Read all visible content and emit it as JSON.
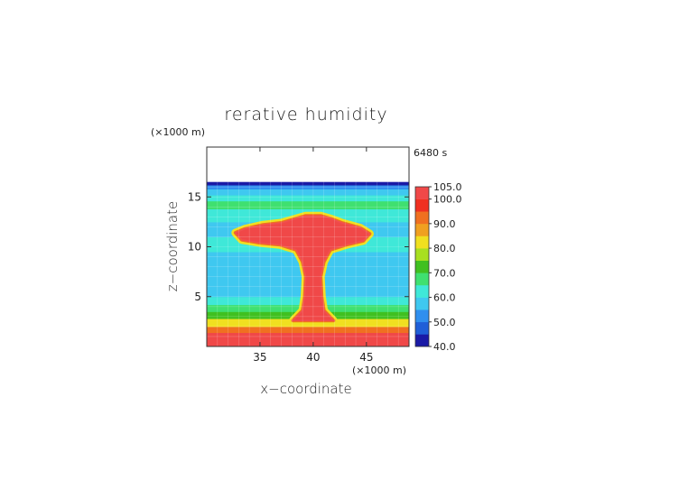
{
  "chart_data": {
    "type": "heatmap",
    "title": "rerative humidity",
    "time_label": "6480 s",
    "xlabel": "x−coordinate",
    "ylabel": "z−coordinate",
    "x_unit": "(×1000 m)",
    "y_unit": "(×1000 m)",
    "xlim": [
      30,
      49
    ],
    "ylim": [
      0,
      20
    ],
    "x_ticks": [
      35,
      40,
      45
    ],
    "y_ticks": [
      5,
      10,
      15
    ],
    "x_tick_labels": [
      "35",
      "40",
      "45"
    ],
    "y_tick_labels": [
      "5",
      "10",
      "15"
    ],
    "colorbar": {
      "levels": [
        40,
        45,
        50,
        55,
        60,
        65,
        70,
        75,
        80,
        85,
        90,
        95,
        100,
        105
      ],
      "colors": [
        "#1a1aa6",
        "#1f5fd8",
        "#2f8fef",
        "#3fc8f0",
        "#3fe8d8",
        "#3fe070",
        "#40c020",
        "#a8e020",
        "#f0e020",
        "#f0a020",
        "#f07020",
        "#f03020",
        "#f04848",
        "#f4a0a0"
      ],
      "tick_labels": [
        "40.0",
        "50.0",
        "60.0",
        "70.0",
        "80.0",
        "90.0",
        "100.0",
        "105.0"
      ]
    },
    "cloud_outline": [
      [
        32.7,
        11.4
      ],
      [
        33.6,
        11.8
      ],
      [
        35.3,
        12.2
      ],
      [
        37.0,
        12.4
      ],
      [
        38.3,
        12.8
      ],
      [
        39.3,
        13.1
      ],
      [
        40.7,
        13.1
      ],
      [
        41.7,
        12.8
      ],
      [
        42.7,
        12.4
      ],
      [
        44.4,
        11.9
      ],
      [
        45.3,
        11.3
      ],
      [
        44.7,
        10.6
      ],
      [
        43.1,
        10.2
      ],
      [
        41.6,
        9.7
      ],
      [
        41.0,
        8.5
      ],
      [
        40.7,
        7.0
      ],
      [
        40.8,
        5.0
      ],
      [
        41.0,
        3.6
      ],
      [
        41.9,
        2.6
      ],
      [
        38.1,
        2.6
      ],
      [
        39.0,
        3.6
      ],
      [
        39.2,
        5.0
      ],
      [
        39.3,
        7.0
      ],
      [
        39.0,
        8.5
      ],
      [
        38.4,
        9.7
      ],
      [
        36.9,
        10.2
      ],
      [
        35.0,
        10.4
      ],
      [
        33.3,
        10.7
      ]
    ],
    "layers": [
      {
        "z": [
          0.0,
          1.4
        ],
        "value": 100
      },
      {
        "z": [
          1.4,
          2.0
        ],
        "value": 92
      },
      {
        "z": [
          2.0,
          2.8
        ],
        "value": 80
      },
      {
        "z": [
          2.8,
          3.5
        ],
        "value": 72
      },
      {
        "z": [
          3.5,
          4.2
        ],
        "value": 67
      },
      {
        "z": [
          4.2,
          5.0
        ],
        "value": 63
      },
      {
        "z": [
          5.0,
          7.5
        ],
        "value": 58
      },
      {
        "z": [
          7.5,
          9.5
        ],
        "value": 57
      },
      {
        "z": [
          9.5,
          11.0
        ],
        "value": 60
      },
      {
        "z": [
          11.0,
          12.5
        ],
        "value": 58
      },
      {
        "z": [
          12.5,
          13.8
        ],
        "value": 63
      },
      {
        "z": [
          13.8,
          14.6
        ],
        "value": 68
      },
      {
        "z": [
          14.6,
          15.2
        ],
        "value": 62
      },
      {
        "z": [
          15.2,
          15.8
        ],
        "value": 55
      },
      {
        "z": [
          15.8,
          16.2
        ],
        "value": 50
      },
      {
        "z": [
          16.2,
          16.5
        ],
        "value": 42
      }
    ]
  }
}
